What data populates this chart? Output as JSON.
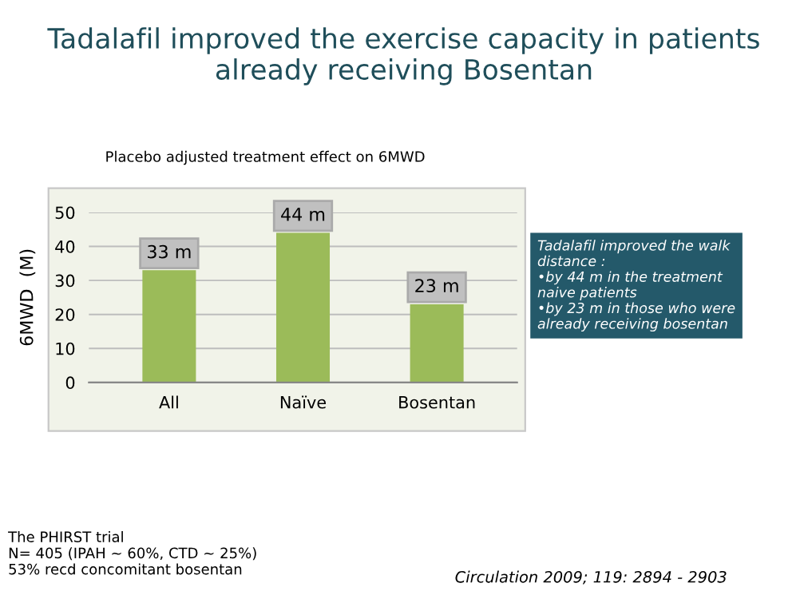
{
  "chart_data": {
    "type": "bar",
    "title": "Tadalafil improved the exercise capacity in patients\nalready receiving Bosentan",
    "subtitle": "Placebo adjusted treatment effect on 6MWD",
    "ylabel": "6MWD  (M)",
    "categories": [
      "All",
      "Naïve",
      "Bosentan"
    ],
    "values": [
      33,
      44,
      23
    ],
    "color": "#9bbb59",
    "value_labels": [
      "33 m",
      "44 m",
      "23 m"
    ],
    "ylim": [
      0,
      50
    ],
    "yticks": [
      0,
      10,
      20,
      30,
      40,
      50
    ],
    "grid": "y",
    "annotations": [
      "Tadalafil improved the walk\ndistance :\n•by 44 m in the treatment\nnaive patients\n•by 23 m in those who were\nalready receiving bosentan",
      "The PHIRST trial\nN= 405 (IPAH ~ 60%, CTD ~ 25%)\n53% recd concomitant bosentan",
      "Circulation 2009; 119: 2894 - 2903"
    ]
  }
}
